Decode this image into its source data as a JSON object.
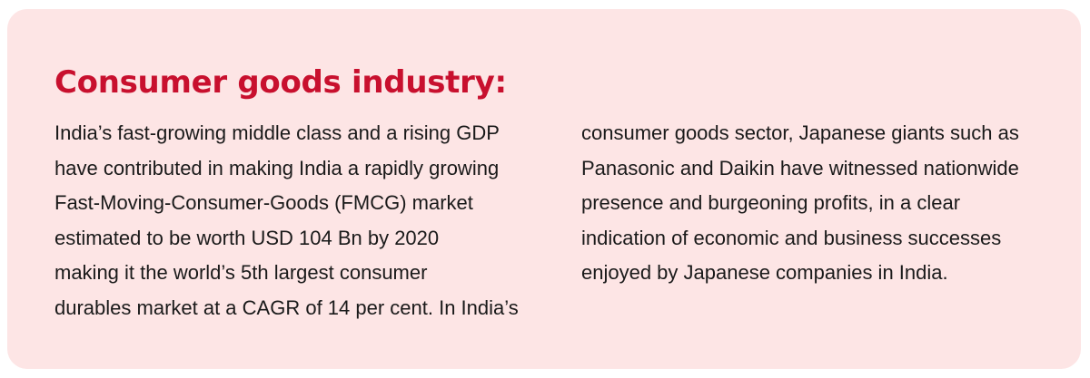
{
  "heading": "Consumer goods industry:",
  "columns": {
    "left": [
      "India’s fast-growing middle class and a rising GDP",
      "have contributed in making India a rapidly growing",
      "Fast-Moving-Consumer-Goods (FMCG) market",
      "estimated to be worth USD 104 Bn by 2020",
      "making it the world’s 5th largest consumer",
      "durables market at a CAGR of 14 per cent. In India’s"
    ],
    "right": [
      "consumer goods sector, Japanese giants such as",
      "Panasonic and Daikin have witnessed nationwide",
      "presence and burgeoning profits, in a clear",
      "indication of economic and business successes",
      "enjoyed by Japanese companies in India."
    ]
  },
  "colors": {
    "card_background": "#fde5e5",
    "heading": "#c8102e",
    "body_text": "#1a1a1a"
  }
}
